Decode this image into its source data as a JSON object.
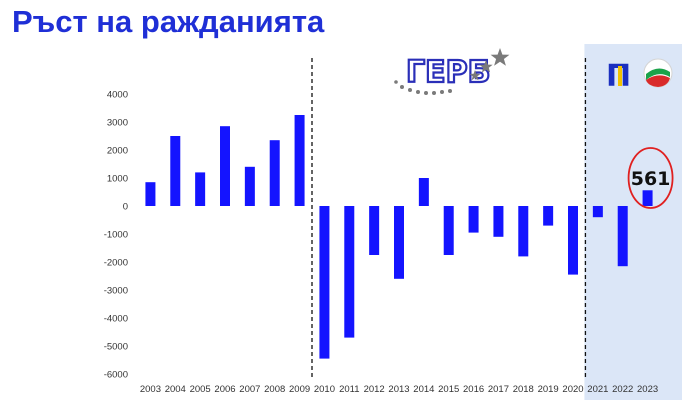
{
  "title": "Ръст на ражданията",
  "logos": {
    "left_text": "ГЕРБ",
    "right_text": "П"
  },
  "colors": {
    "title": "#1f2fd6",
    "bar": "#1414ff",
    "highlight_region": "#dbe6f7",
    "badge_ring": "#e02020",
    "axis_text": "#333333"
  },
  "chart_data": {
    "type": "bar",
    "categories": [
      "2003",
      "2004",
      "2005",
      "2006",
      "2007",
      "2008",
      "2009",
      "2010",
      "2011",
      "2012",
      "2013",
      "2014",
      "2015",
      "2016",
      "2017",
      "2018",
      "2019",
      "2020",
      "2021",
      "2022",
      "2023"
    ],
    "values": [
      850,
      2500,
      1200,
      2850,
      1400,
      2350,
      3250,
      -5450,
      -4700,
      -1750,
      -2600,
      1000,
      -1750,
      -950,
      -1100,
      -1800,
      -700,
      -2450,
      -400,
      -2150,
      561
    ],
    "ylim": [
      -6000,
      4000
    ],
    "yticks": [
      4000,
      3000,
      2000,
      1000,
      0,
      -1000,
      -2000,
      -3000,
      -4000,
      -5000,
      -6000
    ],
    "xlabel": "",
    "ylabel": "",
    "grid": false,
    "annotation": {
      "category": "2023",
      "label": "561"
    },
    "dividers_after": [
      "2009",
      "2020"
    ],
    "highlight_from": "2021"
  }
}
